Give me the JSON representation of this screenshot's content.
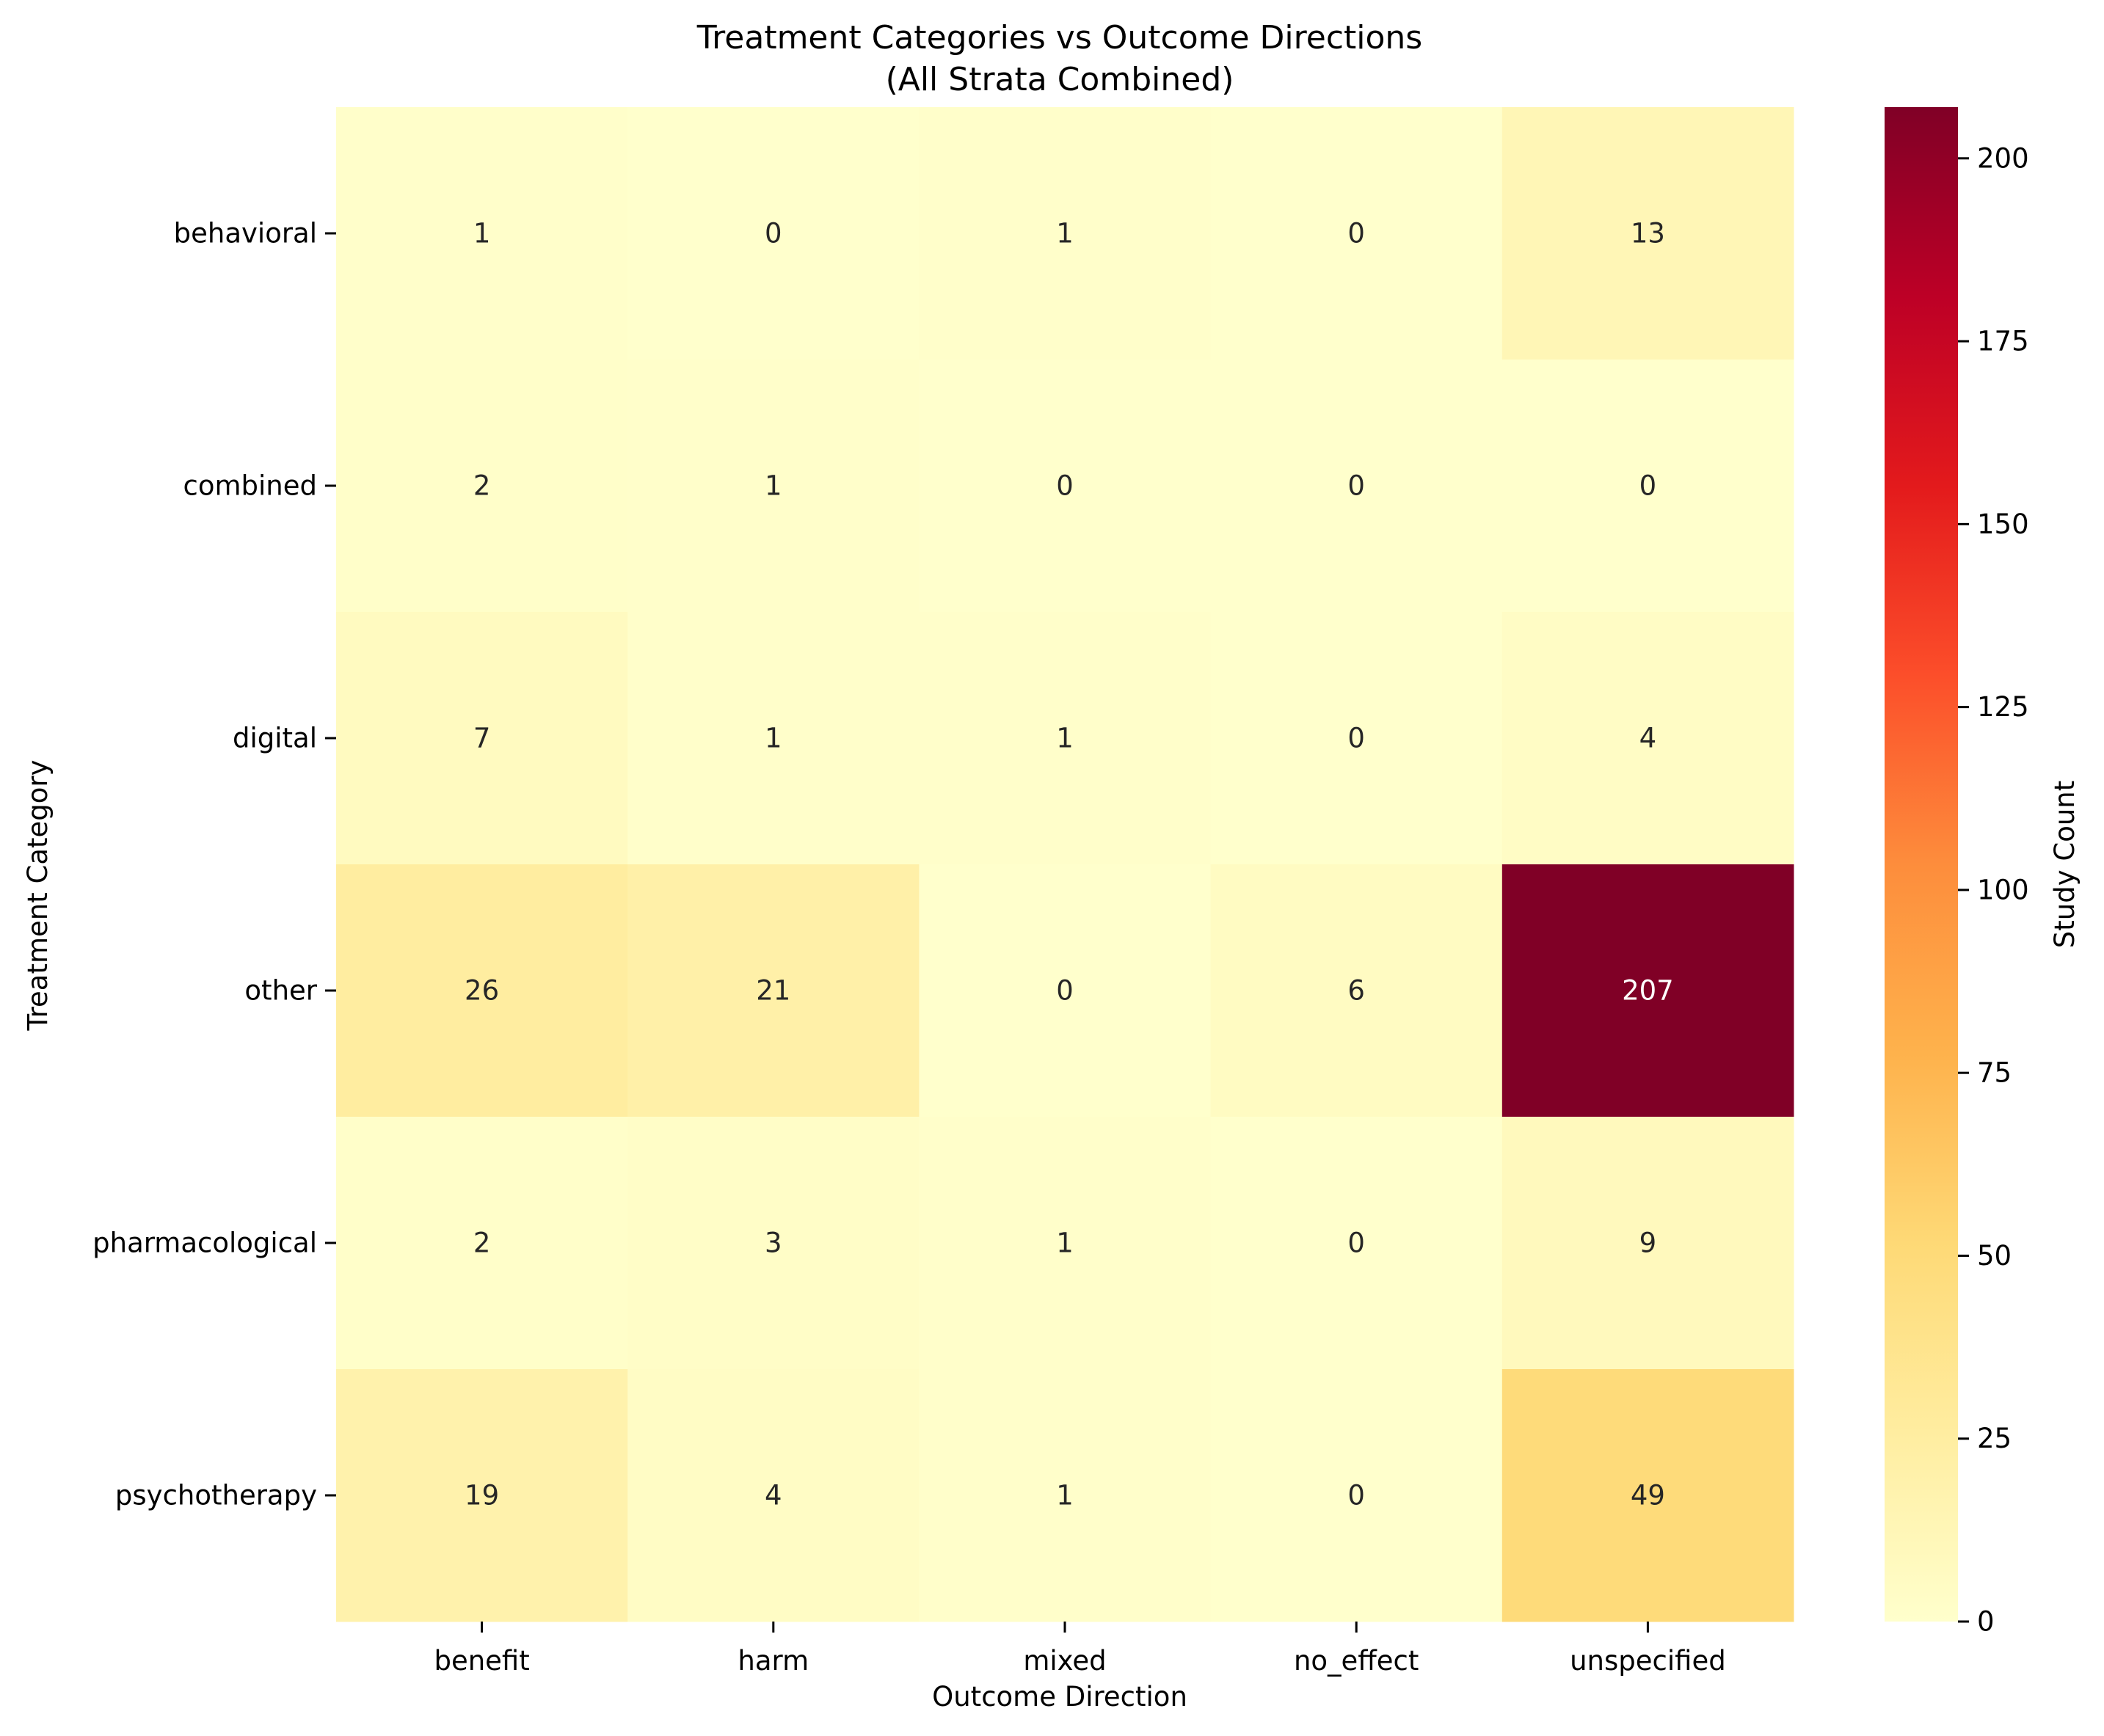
{
  "chart_data": {
    "type": "heatmap",
    "title": "Treatment Categories vs Outcome Directions",
    "subtitle": "(All Strata Combined)",
    "xlabel": "Outcome Direction",
    "ylabel": "Treatment Category",
    "x_categories": [
      "benefit",
      "harm",
      "mixed",
      "no_effect",
      "unspecified"
    ],
    "y_categories": [
      "behavioral",
      "combined",
      "digital",
      "other",
      "pharmacological",
      "psychotherapy"
    ],
    "values": [
      [
        1,
        0,
        1,
        0,
        13
      ],
      [
        2,
        1,
        0,
        0,
        0
      ],
      [
        7,
        1,
        1,
        0,
        4
      ],
      [
        26,
        21,
        0,
        6,
        207
      ],
      [
        2,
        3,
        1,
        0,
        9
      ],
      [
        19,
        4,
        1,
        0,
        49
      ]
    ],
    "colormap": "YlOrRd",
    "color_range": [
      0,
      207
    ],
    "colorbar": {
      "label": "Study Count",
      "ticks": [
        0,
        25,
        50,
        75,
        100,
        125,
        150,
        175,
        200
      ],
      "tick_labels": [
        "0",
        "25",
        "50",
        "75",
        "100",
        "125",
        "150",
        "175",
        "200"
      ]
    },
    "annotated": true,
    "grid": false
  }
}
